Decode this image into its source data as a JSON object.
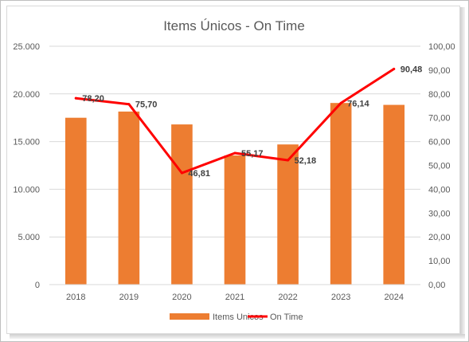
{
  "chart_data": {
    "type": "bar",
    "title": "Items Únicos - On Time",
    "categories": [
      "2018",
      "2019",
      "2020",
      "2021",
      "2022",
      "2023",
      "2024"
    ],
    "series": [
      {
        "name": "Items Unicos",
        "type": "bar",
        "axis": "primary",
        "values": [
          17500,
          18150,
          16800,
          13550,
          14700,
          19050,
          18850
        ]
      },
      {
        "name": "On Time",
        "type": "line",
        "axis": "secondary",
        "values": [
          78.2,
          75.7,
          46.81,
          55.17,
          52.18,
          76.14,
          90.48
        ]
      }
    ],
    "data_labels": [
      "78,20",
      "75,70",
      "46,81",
      "55,17",
      "52,18",
      "76,14",
      "90,48"
    ],
    "primary_axis": {
      "ylim": [
        0,
        25000
      ],
      "ticks": [
        0,
        5000,
        10000,
        15000,
        20000,
        25000
      ],
      "tick_labels": [
        "0",
        "5.000",
        "10.000",
        "15.000",
        "20.000",
        "25.000"
      ]
    },
    "secondary_axis": {
      "ylim": [
        0,
        100
      ],
      "ticks": [
        0,
        10,
        20,
        30,
        40,
        50,
        60,
        70,
        80,
        90,
        100
      ],
      "tick_labels": [
        "0,00",
        "10,00",
        "20,00",
        "30,00",
        "40,00",
        "50,00",
        "60,00",
        "70,00",
        "80,00",
        "90,00",
        "100,00"
      ]
    },
    "grid": true,
    "legend": {
      "position": "bottom",
      "entries": [
        "Items Unicos",
        "On Time"
      ]
    },
    "colors": {
      "bar": "#ED7D31",
      "line": "#FF0000",
      "grid": "#D9D9D9"
    }
  }
}
